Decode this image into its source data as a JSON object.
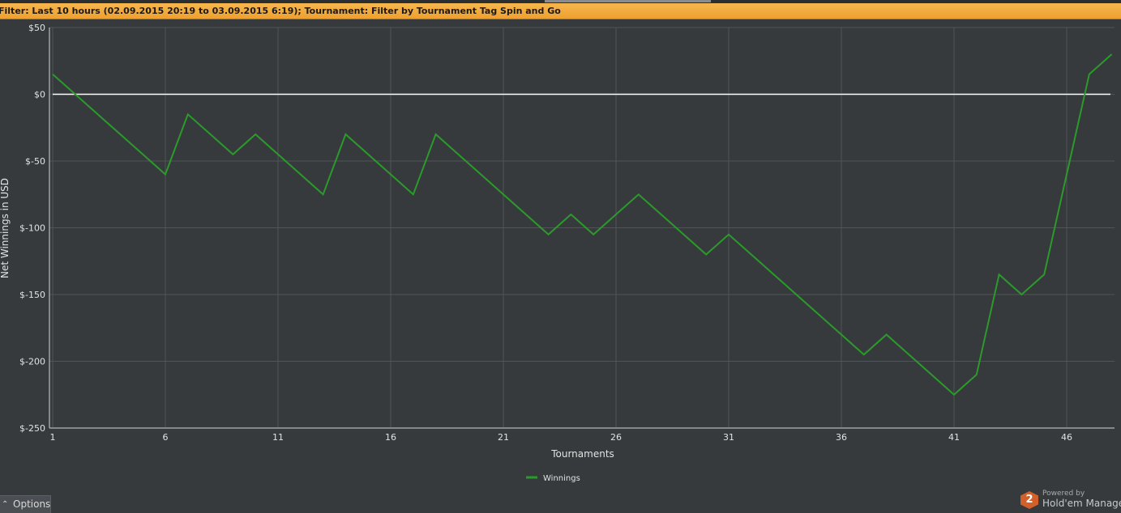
{
  "filter": {
    "text": "Filter: Last 10 hours (02.09.2015 20:19 to 03.09.2015 6:19); Tournament: Filter by Tournament Tag  Spin and Go"
  },
  "chart_data": {
    "type": "line",
    "xlabel": "Tournaments",
    "ylabel": "Net Winnings in USD",
    "xlim": [
      1,
      48
    ],
    "ylim": [
      -250,
      50
    ],
    "x_ticks": [
      1,
      6,
      11,
      16,
      21,
      26,
      31,
      36,
      41,
      46
    ],
    "y_ticks": [
      50,
      0,
      -50,
      -100,
      -150,
      -200,
      -250
    ],
    "y_tick_labels": [
      "$50",
      "$0",
      "$-50",
      "$-100",
      "$-150",
      "$-200",
      "$-250"
    ],
    "grid": true,
    "legend": "bottom-center",
    "zero_line": true,
    "series": [
      {
        "name": "Winnings",
        "color": "#2b9a2b",
        "x": [
          1,
          2,
          3,
          4,
          5,
          6,
          7,
          8,
          9,
          10,
          11,
          12,
          13,
          14,
          15,
          16,
          17,
          18,
          19,
          20,
          21,
          22,
          23,
          24,
          25,
          26,
          27,
          28,
          29,
          30,
          31,
          32,
          33,
          34,
          35,
          36,
          37,
          38,
          39,
          40,
          41,
          42,
          43,
          44,
          45,
          46,
          47,
          48
        ],
        "values": [
          15,
          0,
          -15,
          -30,
          -45,
          -60,
          -15,
          -30,
          -45,
          -30,
          -45,
          -60,
          -75,
          -30,
          -45,
          -60,
          -75,
          -30,
          -45,
          -60,
          -75,
          -90,
          -105,
          -90,
          -105,
          -90,
          -75,
          -90,
          -105,
          -120,
          -105,
          -120,
          -135,
          -150,
          -165,
          -180,
          -195,
          -180,
          -195,
          -210,
          -225,
          -210,
          -135,
          -150,
          -135,
          -60,
          15,
          30
        ]
      }
    ]
  },
  "options": {
    "label": "Options",
    "caret": "⌃"
  },
  "branding": {
    "badge": "2",
    "powered": "Powered by",
    "name": "Hold'em Manager"
  },
  "colors": {
    "background": "#363a3d",
    "grid": "#4f5458",
    "axis": "#9ea2a5",
    "text": "#e2e2e2",
    "filter_bar": "#f2aa3c"
  }
}
